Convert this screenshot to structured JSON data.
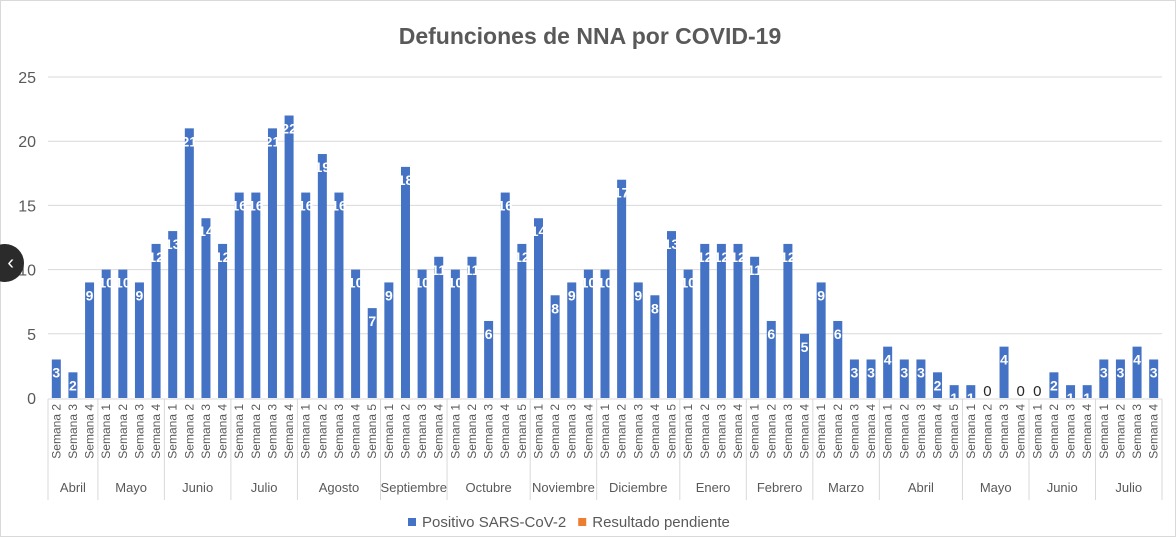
{
  "chart_data": {
    "type": "bar",
    "title": "Defunciones de NNA por COVID-19",
    "xlabel": "",
    "ylabel": "",
    "ylim": [
      0,
      25
    ],
    "yticks": [
      0,
      5,
      10,
      15,
      20,
      25
    ],
    "grid": true,
    "legend_position": "bottom",
    "groups": [
      {
        "month": "Abril",
        "weeks": [
          "Semana 2",
          "Semana 3",
          "Semana 4"
        ]
      },
      {
        "month": "Mayo",
        "weeks": [
          "Semana 1",
          "Semana 2",
          "Semana 3",
          "Semana 4"
        ]
      },
      {
        "month": "Junio",
        "weeks": [
          "Semana 1",
          "Semana 2",
          "Semana 3",
          "Semana 4"
        ]
      },
      {
        "month": "Julio",
        "weeks": [
          "Semana 1",
          "Semana 2",
          "Semana 3",
          "Semana 4"
        ]
      },
      {
        "month": "Agosto",
        "weeks": [
          "Semana 1",
          "Semana 2",
          "Semana 3",
          "Semana 4",
          "Semana 5"
        ]
      },
      {
        "month": "Septiembre",
        "weeks": [
          "Semana 1",
          "Semana 2",
          "Semana 3",
          "Semana 4"
        ]
      },
      {
        "month": "Octubre",
        "weeks": [
          "Semana 1",
          "Semana 2",
          "Semana 3",
          "Semana 4",
          "Semana 5"
        ]
      },
      {
        "month": "Noviembre",
        "weeks": [
          "Semana 1",
          "Semana 2",
          "Semana 3",
          "Semana 4"
        ]
      },
      {
        "month": "Diciembre",
        "weeks": [
          "Semana 1",
          "Semana 2",
          "Semana 3",
          "Semana 4",
          "Semana 5"
        ]
      },
      {
        "month": "Enero",
        "weeks": [
          "Semana 1",
          "Semana 2",
          "Semana 3",
          "Semana 4"
        ]
      },
      {
        "month": "Febrero",
        "weeks": [
          "Semana 1",
          "Semana 2",
          "Semana 3",
          "Semana 4"
        ]
      },
      {
        "month": "Marzo",
        "weeks": [
          "Semana 1",
          "Semana 2",
          "Semana 3",
          "Semana 4"
        ]
      },
      {
        "month": "Abril",
        "weeks": [
          "Semana 1",
          "Semana 2",
          "Semana 3",
          "Semana 4",
          "Semana 5"
        ]
      },
      {
        "month": "Mayo",
        "weeks": [
          "Semana 1",
          "Semana 2",
          "Semana 3",
          "Semana 4"
        ]
      },
      {
        "month": "Junio",
        "weeks": [
          "Semana 1",
          "Semana 2",
          "Semana 3",
          "Semana 4"
        ]
      },
      {
        "month": "Julio",
        "weeks": [
          "Semana 1",
          "Semana 2",
          "Semana 3",
          "Semana 4"
        ]
      }
    ],
    "series": [
      {
        "name": "Positivo SARS-CoV-2",
        "color": "#4472c4",
        "values": [
          3,
          2,
          9,
          10,
          10,
          9,
          12,
          13,
          21,
          14,
          12,
          16,
          16,
          21,
          22,
          16,
          19,
          16,
          10,
          7,
          9,
          18,
          10,
          11,
          10,
          11,
          6,
          16,
          12,
          14,
          8,
          9,
          10,
          10,
          17,
          9,
          8,
          13,
          10,
          12,
          12,
          12,
          11,
          6,
          12,
          5,
          9,
          6,
          3,
          3,
          4,
          3,
          3,
          2,
          1,
          1,
          0,
          4,
          0,
          0,
          2,
          1,
          1,
          3,
          3,
          4,
          3
        ]
      },
      {
        "name": "Resultado pendiente",
        "color": "#ed7d31",
        "values": []
      }
    ]
  },
  "nav": {
    "prev_icon": "chevron-left-icon",
    "prev_glyph": "‹"
  }
}
